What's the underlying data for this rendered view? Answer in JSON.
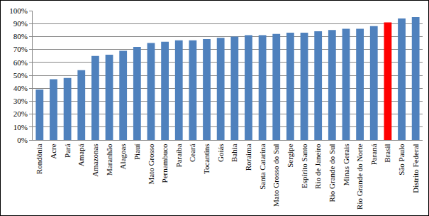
{
  "chart_data": {
    "type": "bar",
    "categories": [
      "Rondônia",
      "Acre",
      "Pará",
      "Amapá",
      "Amazonas",
      "Maranhão",
      "Alagoas",
      "Piauí",
      "Mato Grosso",
      "Pernambuco",
      "Paraíba",
      "Ceará",
      "Tocantins",
      "Goiás",
      "Bahia",
      "Roraima",
      "Santa Catarina",
      "Mato Grosso do Sul",
      "Sergipe",
      "Espírito Santo",
      "Rio de Janeiro",
      "Rio Grande do Sul",
      "Minas Gerais",
      "Rio Grande do Norte",
      "Paraná",
      "Brasil",
      "São Paulo",
      "Distrito Federal"
    ],
    "values": [
      39,
      47,
      48,
      54,
      65,
      66,
      69,
      72,
      75,
      76,
      77,
      77,
      78,
      79,
      80,
      81,
      81,
      82,
      83,
      83,
      84,
      85,
      86,
      86,
      88,
      91,
      94,
      95
    ],
    "colors": [
      "#4f81bd",
      "#4f81bd",
      "#4f81bd",
      "#4f81bd",
      "#4f81bd",
      "#4f81bd",
      "#4f81bd",
      "#4f81bd",
      "#4f81bd",
      "#4f81bd",
      "#4f81bd",
      "#4f81bd",
      "#4f81bd",
      "#4f81bd",
      "#4f81bd",
      "#4f81bd",
      "#4f81bd",
      "#4f81bd",
      "#4f81bd",
      "#4f81bd",
      "#4f81bd",
      "#4f81bd",
      "#4f81bd",
      "#4f81bd",
      "#4f81bd",
      "#ff0000",
      "#4f81bd",
      "#4f81bd"
    ],
    "ylim": [
      0,
      100
    ],
    "yticks": [
      {
        "value": 0,
        "label": "0%"
      },
      {
        "value": 10,
        "label": "10%"
      },
      {
        "value": 20,
        "label": "20%"
      },
      {
        "value": 30,
        "label": "30%"
      },
      {
        "value": 40,
        "label": "40%"
      },
      {
        "value": 50,
        "label": "50%"
      },
      {
        "value": 60,
        "label": "60%"
      },
      {
        "value": 70,
        "label": "70%"
      },
      {
        "value": 80,
        "label": "80%"
      },
      {
        "value": 90,
        "label": "90%"
      },
      {
        "value": 100,
        "label": "100%"
      }
    ],
    "grid": true
  }
}
